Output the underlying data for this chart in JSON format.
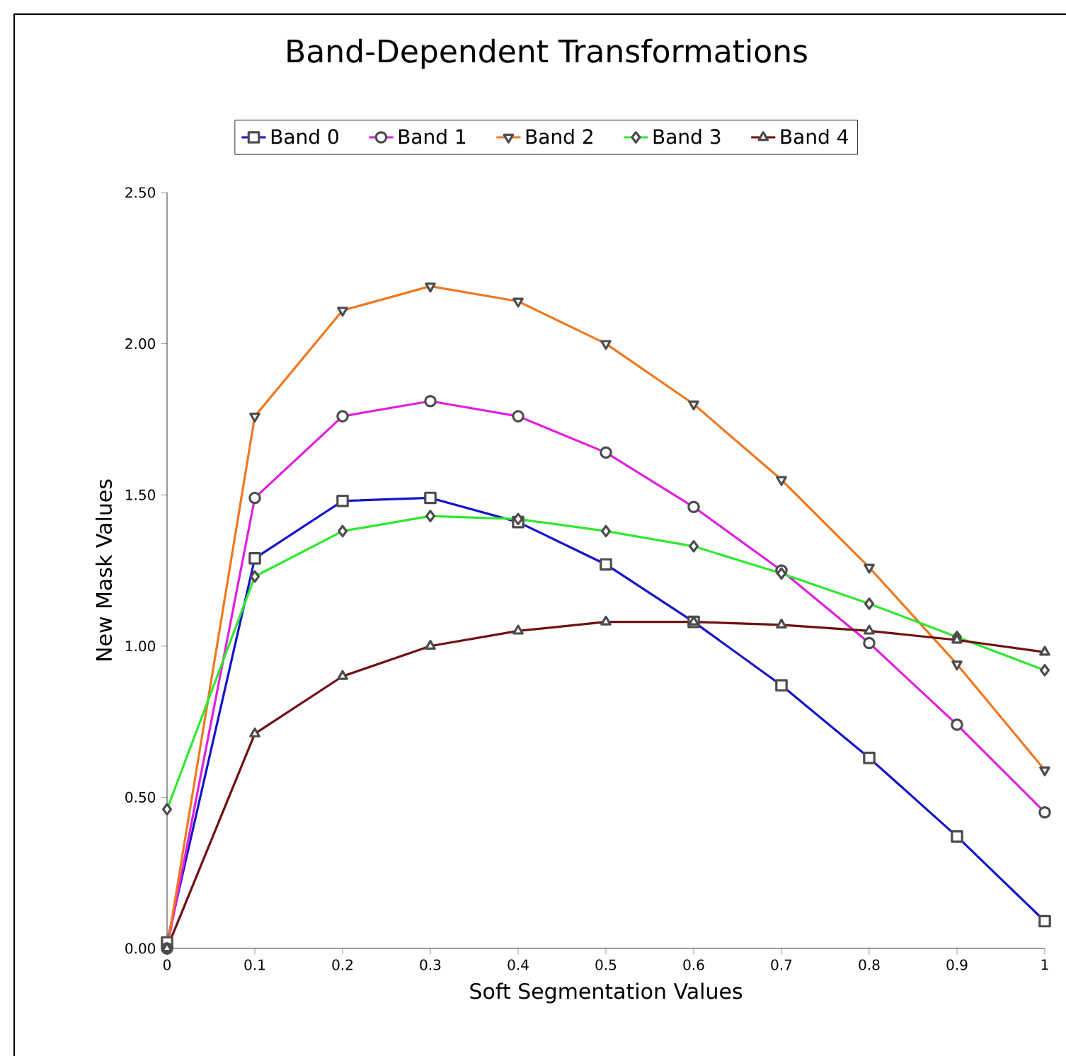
{
  "chart_data": {
    "type": "line",
    "title": "Band-Dependent Transformations",
    "xlabel": "Soft Segmentation Values",
    "ylabel": "New Mask Values",
    "x": [
      0,
      0.1,
      0.2,
      0.3,
      0.4,
      0.5,
      0.6,
      0.7,
      0.8,
      0.9,
      1
    ],
    "series": [
      {
        "name": "Band 0",
        "color": "#1414c8",
        "marker": "square",
        "values": [
          0.02,
          1.29,
          1.48,
          1.49,
          1.41,
          1.27,
          1.08,
          0.87,
          0.63,
          0.37,
          0.09
        ]
      },
      {
        "name": "Band 1",
        "color": "#e020e0",
        "marker": "circle",
        "values": [
          0.0,
          1.49,
          1.76,
          1.81,
          1.76,
          1.64,
          1.46,
          1.25,
          1.01,
          0.74,
          0.45
        ]
      },
      {
        "name": "Band 2",
        "color": "#f07820",
        "marker": "triangle_down",
        "values": [
          0.0,
          1.76,
          2.11,
          2.19,
          2.14,
          2.0,
          1.8,
          1.55,
          1.26,
          0.94,
          0.59
        ]
      },
      {
        "name": "Band 3",
        "color": "#30e830",
        "marker": "diamond",
        "values": [
          0.46,
          1.23,
          1.38,
          1.43,
          1.42,
          1.38,
          1.33,
          1.24,
          1.14,
          1.03,
          0.92
        ]
      },
      {
        "name": "Band 4",
        "color": "#701010",
        "marker": "triangle",
        "values": [
          0.0,
          0.71,
          0.9,
          1.0,
          1.05,
          1.08,
          1.08,
          1.07,
          1.05,
          1.02,
          0.98
        ]
      }
    ],
    "xlim": [
      0,
      1
    ],
    "ylim": [
      0,
      2.5
    ],
    "xticks": [
      0,
      0.1,
      0.2,
      0.3,
      0.4,
      0.5,
      0.6,
      0.7,
      0.8,
      0.9,
      1
    ],
    "yticks": [
      {
        "value": 0,
        "label": "0.00"
      },
      {
        "value": 0.5,
        "label": "0.50"
      },
      {
        "value": 1,
        "label": "1.00"
      },
      {
        "value": 1.5,
        "label": "1.50"
      },
      {
        "value": 2,
        "label": "2.00"
      },
      {
        "value": 2.5,
        "label": "2.50"
      }
    ],
    "grid": false,
    "legend": "top",
    "line_style": "solid"
  }
}
